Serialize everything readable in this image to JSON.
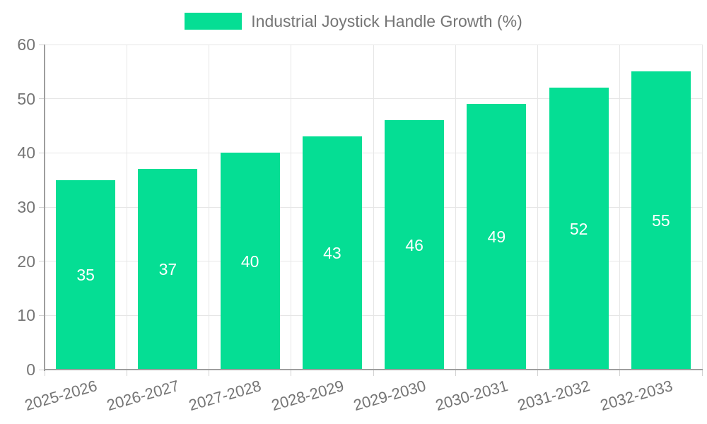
{
  "chart_data": {
    "type": "bar",
    "title": "Industrial Joystick Handle Growth (%)",
    "categories": [
      "2025-2026",
      "2026-2027",
      "2027-2028",
      "2028-2029",
      "2029-2030",
      "2030-2031",
      "2031-2032",
      "2032-2033"
    ],
    "values": [
      35,
      37,
      40,
      43,
      46,
      49,
      52,
      55
    ],
    "xlabel": "",
    "ylabel": "",
    "ylim": [
      0,
      60
    ],
    "yticks": [
      0,
      10,
      20,
      30,
      40,
      50,
      60
    ],
    "grid": true,
    "legend_position": "top-center",
    "x_label_rotation_deg": -16,
    "colors": {
      "bar": "#05de94",
      "value_label": "#ffffff",
      "axis_text": "#757575",
      "grid_line": "#e6e6e6",
      "axis_line": "#9e9e9e",
      "tick_mark": "#d2d2d2",
      "background": "#ffffff"
    }
  }
}
